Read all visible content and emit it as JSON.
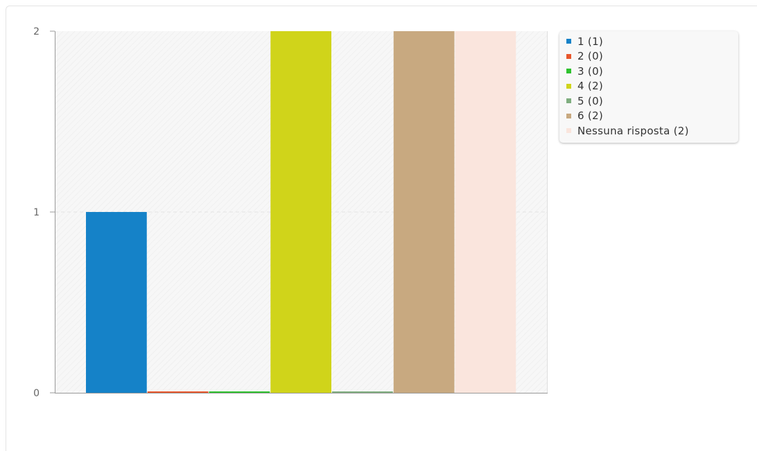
{
  "chart_data": {
    "type": "bar",
    "categories": [
      "1",
      "2",
      "3",
      "4",
      "5",
      "6",
      "Nessuna risposta"
    ],
    "values": [
      1,
      0,
      0,
      2,
      0,
      2,
      2
    ],
    "colors": [
      "#1582c8",
      "#e8562b",
      "#2ec22e",
      "#d0d41a",
      "#7fae7f",
      "#c8a980",
      "#fae5dd"
    ],
    "y_ticks": [
      "0",
      "1",
      "2"
    ],
    "ylim": [
      0,
      2
    ],
    "grid": true,
    "legend": {
      "position": "right",
      "items": [
        {
          "label": "1 (1)",
          "color": "#1582c8"
        },
        {
          "label": "2 (0)",
          "color": "#e8562b"
        },
        {
          "label": "3 (0)",
          "color": "#2ec22e"
        },
        {
          "label": "4 (2)",
          "color": "#d0d41a"
        },
        {
          "label": "5 (0)",
          "color": "#7fae7f"
        },
        {
          "label": "6 (2)",
          "color": "#c8a980"
        },
        {
          "label": "Nessuna risposta (2)",
          "color": "#fae5dd"
        }
      ]
    },
    "plot_background": "#f7f7f7",
    "axis_color": "#999999",
    "grid_color": "#e3e3e3",
    "tick_label_color": "#666666"
  }
}
